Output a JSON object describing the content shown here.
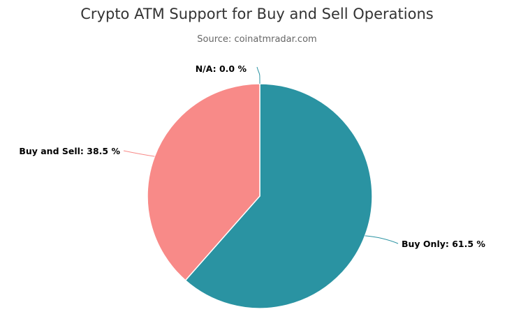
{
  "chart_data": {
    "type": "pie",
    "title": "Crypto ATM Support for Buy and Sell Operations",
    "subtitle": "Source: coinatmradar.com",
    "slices": [
      {
        "name": "Buy Only",
        "value": 61.5,
        "label": "Buy Only: 61.5 %",
        "color": "#2a93a2"
      },
      {
        "name": "Buy and Sell",
        "value": 38.5,
        "label": "Buy and Sell: 38.5 %",
        "color": "#f88a88"
      },
      {
        "name": "N/A",
        "value": 0.0,
        "label": "N/A: 0.0 %",
        "color": "#2a93a2"
      }
    ],
    "start_angle_deg": 0,
    "direction": "clockwise",
    "legend": "none",
    "data_labels": "outside-with-connectors"
  }
}
